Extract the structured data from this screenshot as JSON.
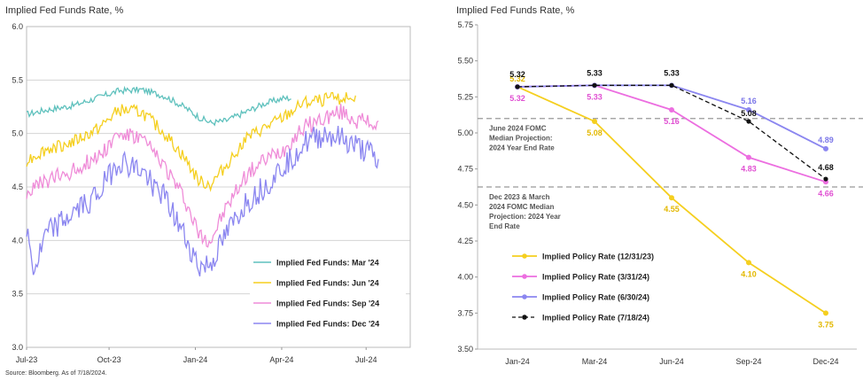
{
  "left": {
    "title": "Implied Fed Funds Rate, %",
    "chart_data": {
      "type": "line",
      "ylim": [
        3.0,
        6.0
      ],
      "yticks": [
        "3.0",
        "3.5",
        "4.0",
        "4.5",
        "5.0",
        "5.5",
        "6.0"
      ],
      "xticks": [
        "Jul-23",
        "Oct-23",
        "Jan-24",
        "Apr-24",
        "Jul-24"
      ],
      "grid": true,
      "legend_position": "bottom-right",
      "series": [
        {
          "name": "Implied Fed Funds: Mar '24",
          "color": "#5fc1bd",
          "noise": 0.03,
          "anchors": [
            [
              0.0,
              5.18
            ],
            [
              0.05,
              5.22
            ],
            [
              0.12,
              5.26
            ],
            [
              0.19,
              5.34
            ],
            [
              0.24,
              5.4
            ],
            [
              0.3,
              5.41
            ],
            [
              0.36,
              5.35
            ],
            [
              0.41,
              5.25
            ],
            [
              0.45,
              5.15
            ],
            [
              0.48,
              5.1
            ],
            [
              0.52,
              5.12
            ],
            [
              0.57,
              5.2
            ],
            [
              0.62,
              5.28
            ],
            [
              0.67,
              5.33
            ],
            [
              0.69,
              5.33
            ]
          ]
        },
        {
          "name": "Implied Fed Funds: Jun '24",
          "color": "#f5cf1f",
          "noise": 0.06,
          "anchors": [
            [
              0.0,
              4.75
            ],
            [
              0.05,
              4.85
            ],
            [
              0.12,
              4.92
            ],
            [
              0.19,
              5.05
            ],
            [
              0.24,
              5.22
            ],
            [
              0.3,
              5.2
            ],
            [
              0.36,
              5.0
            ],
            [
              0.41,
              4.78
            ],
            [
              0.45,
              4.55
            ],
            [
              0.48,
              4.52
            ],
            [
              0.52,
              4.7
            ],
            [
              0.57,
              4.95
            ],
            [
              0.62,
              5.05
            ],
            [
              0.67,
              5.15
            ],
            [
              0.72,
              5.28
            ],
            [
              0.78,
              5.32
            ],
            [
              0.82,
              5.33
            ],
            [
              0.86,
              5.33
            ]
          ]
        },
        {
          "name": "Implied Fed Funds: Sep '24",
          "color": "#ef8cd8",
          "noise": 0.08,
          "anchors": [
            [
              0.0,
              4.45
            ],
            [
              0.05,
              4.55
            ],
            [
              0.12,
              4.65
            ],
            [
              0.19,
              4.8
            ],
            [
              0.24,
              5.0
            ],
            [
              0.3,
              4.95
            ],
            [
              0.36,
              4.7
            ],
            [
              0.41,
              4.4
            ],
            [
              0.45,
              4.05
            ],
            [
              0.48,
              4.0
            ],
            [
              0.52,
              4.3
            ],
            [
              0.57,
              4.6
            ],
            [
              0.62,
              4.75
            ],
            [
              0.67,
              4.85
            ],
            [
              0.72,
              5.05
            ],
            [
              0.78,
              5.15
            ],
            [
              0.82,
              5.2
            ],
            [
              0.86,
              5.12
            ],
            [
              0.9,
              5.1
            ],
            [
              0.92,
              5.07
            ]
          ]
        },
        {
          "name": "Implied Fed Funds: Dec '24",
          "color": "#8b86f0",
          "noise": 0.12,
          "anchors": [
            [
              0.0,
              4.1
            ],
            [
              0.02,
              3.7
            ],
            [
              0.05,
              4.05
            ],
            [
              0.12,
              4.25
            ],
            [
              0.19,
              4.45
            ],
            [
              0.24,
              4.75
            ],
            [
              0.3,
              4.65
            ],
            [
              0.36,
              4.4
            ],
            [
              0.41,
              4.05
            ],
            [
              0.45,
              3.75
            ],
            [
              0.48,
              3.78
            ],
            [
              0.52,
              4.05
            ],
            [
              0.57,
              4.35
            ],
            [
              0.62,
              4.5
            ],
            [
              0.67,
              4.7
            ],
            [
              0.72,
              4.9
            ],
            [
              0.78,
              5.0
            ],
            [
              0.82,
              4.95
            ],
            [
              0.86,
              4.88
            ],
            [
              0.9,
              4.8
            ],
            [
              0.92,
              4.68
            ]
          ]
        }
      ]
    },
    "source": "Source: Bloomberg. As of 7/18/2024."
  },
  "right": {
    "title": "Implied Fed Funds Rate, %",
    "chart_data": {
      "type": "line",
      "categories": [
        "Jan-24",
        "Mar-24",
        "Jun-24",
        "Sep-24",
        "Dec-24"
      ],
      "ylim": [
        3.5,
        5.75
      ],
      "yticks": [
        "3.50",
        "3.75",
        "4.00",
        "4.25",
        "4.50",
        "4.75",
        "5.00",
        "5.25",
        "5.50",
        "5.75"
      ],
      "grid": false,
      "legend_position": "bottom-left",
      "series": [
        {
          "name": "Implied Policy Rate (12/31/23)",
          "color": "#f5cf1f",
          "dash": false,
          "values": [
            5.32,
            5.08,
            4.55,
            4.1,
            3.75
          ],
          "labels": [
            "5.32",
            "5.08",
            "4.55",
            "4.10",
            "3.75"
          ]
        },
        {
          "name": "Implied Policy Rate (3/31/24)",
          "color": "#ec6ee0",
          "dash": false,
          "values": [
            5.32,
            5.33,
            5.16,
            4.83,
            4.66
          ],
          "labels": [
            "5.32",
            "5.33",
            "5.16",
            "4.83",
            "4.66"
          ]
        },
        {
          "name": "Implied Policy Rate (6/30/24)",
          "color": "#8b86f0",
          "dash": false,
          "values": [
            5.32,
            5.33,
            5.33,
            5.16,
            4.89
          ],
          "labels": [
            "",
            "",
            "",
            "5.16",
            "4.89"
          ]
        },
        {
          "name": "Implied Policy Rate (7/18/24)",
          "color": "#111111",
          "dash": true,
          "values": [
            5.32,
            5.33,
            5.33,
            5.08,
            4.68
          ],
          "labels": [
            "5.32",
            "5.33",
            "5.33",
            "5.08",
            "4.68"
          ]
        }
      ],
      "reference_lines": [
        {
          "value": 5.1,
          "label": [
            "June 2024 FOMC",
            "Median Projection:",
            "2024 Year End Rate"
          ]
        },
        {
          "value": 4.625,
          "label": [
            "Dec 2023 & March",
            "2024 FOMC Median",
            "Projection: 2024 Year",
            "End Rate"
          ]
        }
      ]
    }
  }
}
